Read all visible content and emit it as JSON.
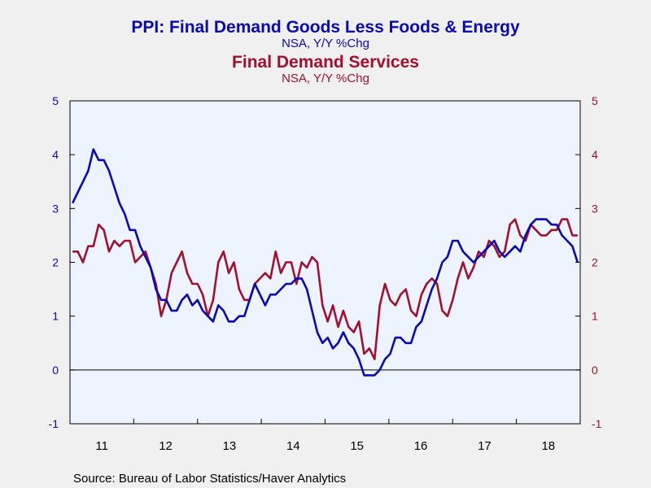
{
  "colors": {
    "background": "#f0f0f0",
    "plot_bg": "#eef4ff",
    "goods": "#0a0ab4",
    "services": "#a3102e"
  },
  "titles": {
    "goods_title": "PPI: Final Demand Goods Less Foods & Energy",
    "goods_sub": "NSA, Y/Y %Chg",
    "services_title": "Final Demand Services",
    "services_sub": "NSA, Y/Y %Chg"
  },
  "source": "Source:  Bureau of Labor Statistics/Haver Analytics",
  "chart_data": {
    "type": "line",
    "title": "PPI: Final Demand Goods Less Foods & Energy / Final Demand Services",
    "ylim": [
      -1,
      5
    ],
    "y_ticks": [
      "-1",
      "0",
      "1",
      "2",
      "3",
      "4",
      "5"
    ],
    "x_tick_labels": [
      "11",
      "12",
      "13",
      "14",
      "15",
      "16",
      "17",
      "18"
    ],
    "x_start": "2011-01",
    "x_end": "2018-12",
    "grid": false,
    "series": [
      {
        "name": "PPI: Final Demand Goods Less Foods & Energy",
        "axis": "left",
        "values": [
          3.1,
          3.3,
          3.5,
          3.7,
          4.1,
          3.9,
          3.9,
          3.7,
          3.4,
          3.1,
          2.9,
          2.6,
          2.6,
          2.3,
          2.1,
          1.9,
          1.5,
          1.3,
          1.3,
          1.1,
          1.1,
          1.3,
          1.4,
          1.2,
          1.3,
          1.1,
          1.0,
          0.9,
          1.2,
          1.1,
          0.9,
          0.9,
          1.0,
          1.0,
          1.3,
          1.6,
          1.4,
          1.2,
          1.4,
          1.4,
          1.5,
          1.6,
          1.6,
          1.7,
          1.7,
          1.5,
          1.1,
          0.7,
          0.5,
          0.6,
          0.4,
          0.5,
          0.7,
          0.5,
          0.4,
          0.2,
          -0.1,
          -0.1,
          -0.1,
          0.0,
          0.2,
          0.3,
          0.6,
          0.6,
          0.5,
          0.5,
          0.8,
          0.9,
          1.2,
          1.5,
          1.7,
          2.0,
          2.1,
          2.4,
          2.4,
          2.2,
          2.1,
          2.0,
          2.1,
          2.2,
          2.3,
          2.4,
          2.2,
          2.1,
          2.2,
          2.3,
          2.2,
          2.5,
          2.7,
          2.8,
          2.8,
          2.8,
          2.7,
          2.7,
          2.5,
          2.4,
          2.3,
          2.0
        ]
      },
      {
        "name": "Final Demand Services",
        "axis": "right",
        "values": [
          2.2,
          2.2,
          2.0,
          2.3,
          2.3,
          2.7,
          2.6,
          2.2,
          2.4,
          2.3,
          2.4,
          2.4,
          2.0,
          2.1,
          2.2,
          1.9,
          1.6,
          1.0,
          1.3,
          1.8,
          2.0,
          2.2,
          1.8,
          1.6,
          1.6,
          1.4,
          1.0,
          1.3,
          2.0,
          2.2,
          1.8,
          2.0,
          1.5,
          1.3,
          1.3,
          1.6,
          1.7,
          1.8,
          1.7,
          2.2,
          1.8,
          2.0,
          2.0,
          1.6,
          2.0,
          1.9,
          2.1,
          2.0,
          1.2,
          0.9,
          1.2,
          0.8,
          1.1,
          0.8,
          0.7,
          0.9,
          0.3,
          0.4,
          0.2,
          1.2,
          1.6,
          1.3,
          1.2,
          1.4,
          1.5,
          1.1,
          1.0,
          1.4,
          1.6,
          1.7,
          1.6,
          1.1,
          1.0,
          1.3,
          1.7,
          2.0,
          1.7,
          1.9,
          2.2,
          2.1,
          2.4,
          2.3,
          2.1,
          2.2,
          2.7,
          2.8,
          2.5,
          2.4,
          2.7,
          2.6,
          2.5,
          2.5,
          2.6,
          2.6,
          2.8,
          2.8,
          2.5,
          2.5
        ]
      }
    ]
  }
}
